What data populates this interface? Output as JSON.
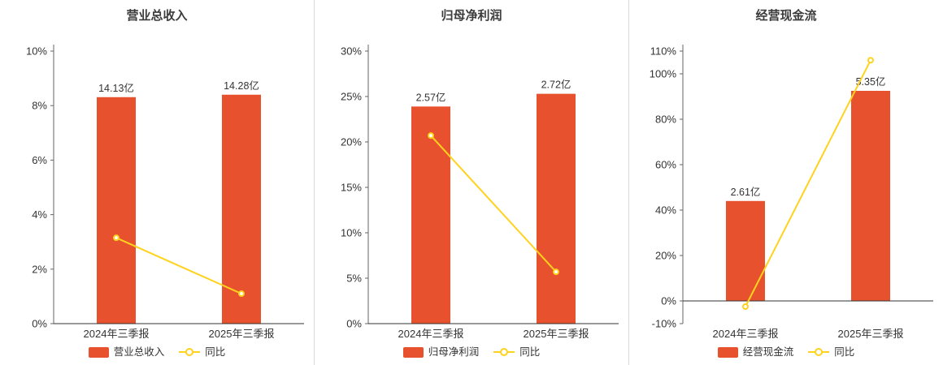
{
  "colors": {
    "bar": "#e8512d",
    "line": "#ffd21e",
    "y_axis": "#666666",
    "x_axis": "#333333",
    "text": "#333333",
    "divider": "#d9d9d9"
  },
  "chart_data": [
    {
      "type": "bar",
      "title": "营业总收入",
      "categories": [
        "2024年三季报",
        "2025年三季报"
      ],
      "bar_series": {
        "name": "营业总收入",
        "labels": [
          "14.13亿",
          "14.28亿"
        ],
        "values_axis_pct": [
          8.31,
          8.4
        ]
      },
      "line_series": {
        "name": "同比",
        "values_pct": [
          3.15,
          1.1
        ]
      },
      "ylim": [
        0,
        10
      ],
      "yticks": [
        0,
        2,
        4,
        6,
        8,
        10
      ],
      "ytick_suffix": "%",
      "grid": "off",
      "legend_position": "bottom"
    },
    {
      "type": "bar",
      "title": "归母净利润",
      "categories": [
        "2024年三季报",
        "2025年三季报"
      ],
      "bar_series": {
        "name": "归母净利润",
        "labels": [
          "2.57亿",
          "2.72亿"
        ],
        "values_axis_pct": [
          23.9,
          25.3
        ]
      },
      "line_series": {
        "name": "同比",
        "values_pct": [
          20.7,
          5.7
        ]
      },
      "ylim": [
        0,
        30
      ],
      "yticks": [
        0,
        5,
        10,
        15,
        20,
        25,
        30
      ],
      "ytick_suffix": "%",
      "grid": "off",
      "legend_position": "bottom"
    },
    {
      "type": "bar",
      "title": "经营现金流",
      "categories": [
        "2024年三季报",
        "2025年三季报"
      ],
      "bar_series": {
        "name": "经营现金流",
        "labels": [
          "2.61亿",
          "5.35亿"
        ],
        "values_axis_pct": [
          44,
          92.5
        ]
      },
      "line_series": {
        "name": "同比",
        "values_pct": [
          -2.5,
          106
        ]
      },
      "ylim": [
        -10,
        110
      ],
      "yticks": [
        -10,
        0,
        20,
        40,
        60,
        80,
        100,
        110
      ],
      "ytick_suffix": "%",
      "grid": "off",
      "legend_position": "bottom"
    }
  ]
}
